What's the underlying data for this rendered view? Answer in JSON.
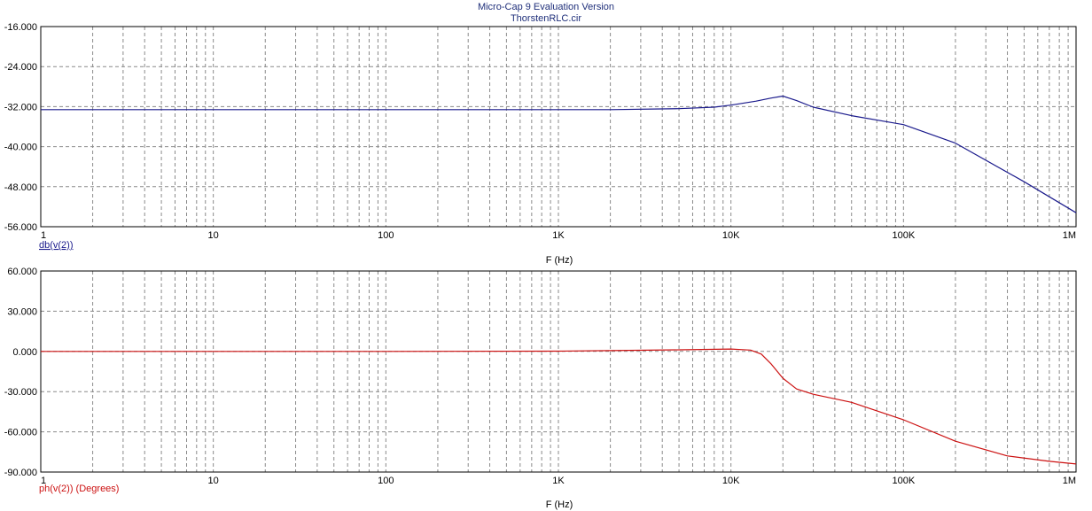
{
  "header": {
    "title": "Micro-Cap 9 Evaluation Version",
    "subtitle": "ThorstenRLC.cir"
  },
  "colors": {
    "magnitude": "#1a1a8c",
    "phase": "#cc1111",
    "title_text": "#1f2f7a",
    "grid": "#8a8a8a",
    "axis_text": "#000000"
  },
  "chart_data": [
    {
      "type": "line",
      "xscale": "log",
      "xlim": [
        1,
        1000000
      ],
      "x_ticks": [
        "1",
        "10",
        "100",
        "1K",
        "10K",
        "100K",
        "1M"
      ],
      "ylim": [
        -56,
        -16
      ],
      "y_ticks": [
        "-16.000",
        "-24.000",
        "-32.000",
        "-40.000",
        "-48.000",
        "-56.000"
      ],
      "xlabel": "F (Hz)",
      "ylabel": "db(v(2))",
      "grid": true,
      "series": [
        {
          "name": "db(v(2))",
          "x": [
            1,
            10,
            100,
            1000,
            2000,
            5000,
            8000,
            10000,
            14000,
            17000,
            20000,
            24000,
            30000,
            50000,
            100000,
            200000,
            500000,
            1000000
          ],
          "y": [
            -32.6,
            -32.6,
            -32.6,
            -32.6,
            -32.6,
            -32.4,
            -32.1,
            -31.7,
            -30.9,
            -30.3,
            -29.9,
            -30.8,
            -32.1,
            -33.8,
            -35.6,
            -39.3,
            -47.0,
            -53.2
          ]
        }
      ]
    },
    {
      "type": "line",
      "xscale": "log",
      "xlim": [
        1,
        1000000
      ],
      "x_ticks": [
        "1",
        "10",
        "100",
        "1K",
        "10K",
        "100K",
        "1M"
      ],
      "ylim": [
        -90,
        60
      ],
      "y_ticks": [
        "60.000",
        "30.000",
        "0.000",
        "-30.000",
        "-60.000",
        "-90.000"
      ],
      "xlabel": "F (Hz)",
      "ylabel": "ph(v(2)) (Degrees)",
      "grid": true,
      "series": [
        {
          "name": "ph(v(2)) (Degrees)",
          "x": [
            1,
            10,
            100,
            1000,
            2000,
            5000,
            10000,
            13000,
            15000,
            17000,
            20000,
            24000,
            30000,
            50000,
            100000,
            200000,
            400000,
            700000,
            1000000
          ],
          "y": [
            0,
            0,
            0,
            0.2,
            0.6,
            1.2,
            1.8,
            1.0,
            -2.0,
            -9.0,
            -20.0,
            -28.0,
            -32.0,
            -38.0,
            -51.0,
            -67.0,
            -78.0,
            -82.0,
            -84.0
          ]
        }
      ]
    }
  ]
}
